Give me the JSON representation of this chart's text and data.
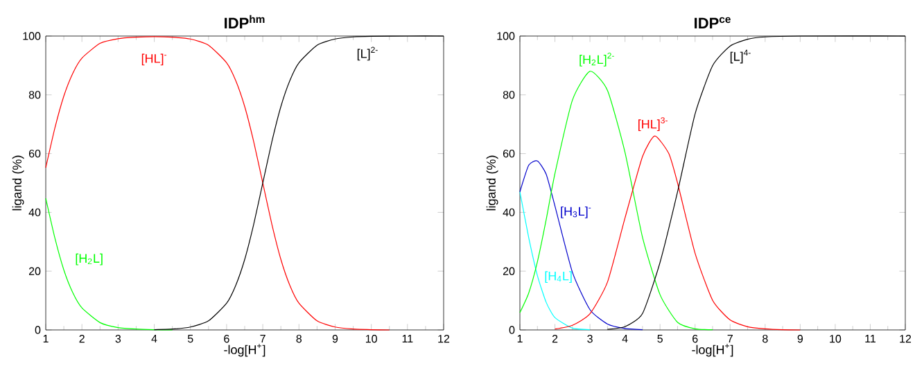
{
  "chart_data": [
    {
      "type": "line",
      "title": "IDP$^{hm}$",
      "xlabel": "-log[H$^{+}$]",
      "ylabel": "ligand (%)",
      "xlim": [
        1,
        12
      ],
      "ylim": [
        0,
        100
      ],
      "xticks": [
        1,
        2,
        3,
        4,
        5,
        6,
        7,
        8,
        9,
        10,
        11,
        12
      ],
      "yticks": [
        0,
        20,
        40,
        60,
        80,
        100
      ],
      "grid": false,
      "legend": false,
      "marker": "none",
      "line_style": "solid",
      "series": [
        {
          "name": "[H$_{2}$L]",
          "color": "#00ff00",
          "x": [
            1,
            1.25,
            1.5,
            1.75,
            2,
            2.5,
            3,
            3.5,
            4,
            4.5
          ],
          "values": [
            44.8,
            31.4,
            20.4,
            12.6,
            7.5,
            2.5,
            0.8,
            0.3,
            0.1,
            0
          ]
        },
        {
          "name": "[HL]$^{-}$",
          "color": "#ff0000",
          "x": [
            1,
            1.25,
            1.5,
            1.75,
            2,
            2.5,
            3,
            3.5,
            4,
            4.5,
            5,
            5.5,
            6,
            6.25,
            6.5,
            6.75,
            7,
            7.25,
            7.5,
            7.75,
            8,
            8.5,
            9,
            9.5,
            10,
            10.5
          ],
          "values": [
            55.2,
            68.6,
            79.6,
            87.4,
            92.5,
            97.5,
            99.1,
            99.6,
            99.8,
            99.6,
            99.0,
            96.9,
            90.9,
            84.9,
            76.0,
            64.0,
            50.0,
            36.0,
            24.0,
            15.1,
            9.1,
            3.1,
            1.0,
            0.3,
            0.1,
            0
          ]
        },
        {
          "name": "[L]$^{2-}$",
          "color": "#000000",
          "x": [
            4,
            4.5,
            5,
            5.5,
            6,
            6.25,
            6.5,
            6.75,
            7,
            7.25,
            7.5,
            7.75,
            8,
            8.5,
            9,
            9.5,
            10,
            11,
            12
          ],
          "values": [
            0.1,
            0.3,
            1.0,
            3.1,
            9.1,
            15.1,
            24.0,
            36.0,
            50.0,
            64.0,
            76.0,
            84.9,
            90.9,
            96.9,
            99.0,
            99.7,
            99.9,
            100,
            100
          ]
        }
      ]
    },
    {
      "type": "line",
      "title": "IDP$^{ce}$",
      "xlabel": "-log[H$^{+}$]",
      "ylabel": "ligand (%)",
      "xlim": [
        1,
        12
      ],
      "ylim": [
        0,
        100
      ],
      "xticks": [
        1,
        2,
        3,
        4,
        5,
        6,
        7,
        8,
        9,
        10,
        11,
        12
      ],
      "yticks": [
        0,
        20,
        40,
        60,
        80,
        100
      ],
      "grid": false,
      "legend": false,
      "marker": "none",
      "line_style": "solid",
      "series": [
        {
          "name": "[H$_{4}$L]",
          "color": "#00ffff",
          "x": [
            1,
            1.25,
            1.5,
            1.75,
            2,
            2.5,
            3
          ],
          "values": [
            47,
            31.5,
            18.5,
            9.4,
            4.2,
            0.6,
            0.1
          ]
        },
        {
          "name": "[H$_{3}$L]$^{-}$",
          "color": "#0000cc",
          "x": [
            1,
            1.25,
            1.5,
            1.75,
            2,
            2.5,
            3,
            3.5,
            4,
            4.5
          ],
          "values": [
            47,
            56,
            57.5,
            53,
            42.2,
            19.6,
            6.9,
            2.0,
            0.5,
            0.1
          ]
        },
        {
          "name": "[H$_{2}$L]$^{2-}$",
          "color": "#00ff00",
          "x": [
            1,
            1.25,
            1.5,
            1.75,
            2,
            2.5,
            3,
            3.5,
            4,
            4.5,
            5,
            5.5,
            6,
            6.5
          ],
          "values": [
            5.9,
            12.5,
            23.2,
            37.5,
            53.2,
            78.2,
            88,
            81.5,
            60.4,
            31.5,
            12,
            2.6,
            0.4,
            0.1
          ]
        },
        {
          "name": "[HL]$^{3-}$",
          "color": "#ff0000",
          "x": [
            2,
            2.5,
            3,
            3.5,
            4,
            4.5,
            4.85,
            5.25,
            5.5,
            6,
            6.5,
            7,
            7.5,
            8,
            8.5,
            9
          ],
          "values": [
            0.3,
            1.6,
            5.5,
            16.3,
            38.1,
            59,
            66,
            60,
            50,
            26.1,
            10.1,
            3.4,
            1.1,
            0.4,
            0.1,
            0
          ]
        },
        {
          "name": "[L]$^{4-}$",
          "color": "#000000",
          "x": [
            3.5,
            4,
            4.5,
            5,
            5.5,
            6,
            6.5,
            7,
            7.5,
            8,
            9,
            12
          ],
          "values": [
            0.2,
            1.1,
            5.6,
            23,
            47,
            73.5,
            89.9,
            96.6,
            98.9,
            99.7,
            100,
            100
          ]
        }
      ]
    }
  ]
}
